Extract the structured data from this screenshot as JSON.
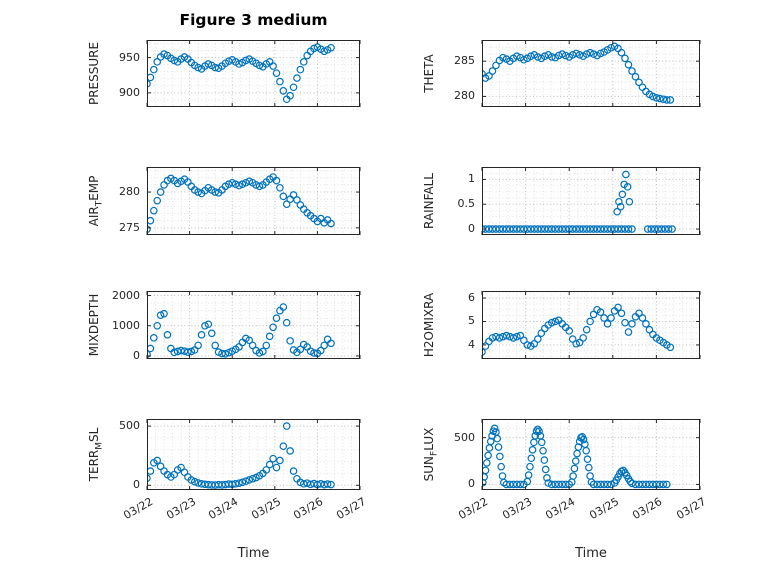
{
  "figure": {
    "title": "Figure 3 medium",
    "xlabel": "Time"
  },
  "style": {
    "marker_color": "#0072BD",
    "axis_color": "#262626",
    "grid_color": "#bdbdbd",
    "minor_grid_color": "#e0e0e0",
    "background": "#ffffff"
  },
  "x_axis": {
    "lim": [
      0,
      5
    ],
    "ticks": [
      0,
      1,
      2,
      3,
      4,
      5
    ],
    "tick_labels": [
      "03/22",
      "03/23",
      "03/24",
      "03/25",
      "03/26",
      "03/27"
    ],
    "minor_step": 0.2
  },
  "x_shared": [
    0,
    0.08,
    0.16,
    0.24,
    0.32,
    0.4,
    0.48,
    0.56,
    0.64,
    0.72,
    0.8,
    0.88,
    0.96,
    1.04,
    1.12,
    1.2,
    1.28,
    1.36,
    1.44,
    1.52,
    1.6,
    1.68,
    1.76,
    1.84,
    1.92,
    2,
    2.08,
    2.16,
    2.24,
    2.32,
    2.4,
    2.48,
    2.56,
    2.64,
    2.72,
    2.8,
    2.88,
    2.96,
    3.04,
    3.12,
    3.2,
    3.28,
    3.36,
    3.44,
    3.52,
    3.6,
    3.68,
    3.76,
    3.84,
    3.92,
    4,
    4.08,
    4.16,
    4.24,
    4.32
  ],
  "chart_data": [
    {
      "type": "scatter",
      "name": "PRESSURE",
      "ylabel_parts": {
        "pre": "PRESSURE",
        "sub": "",
        "post": ""
      },
      "ylim": [
        880,
        975
      ],
      "yticks": [
        900,
        950
      ],
      "ytick_labels": [
        "900",
        "950"
      ],
      "yminor_step": 10,
      "x": "shared",
      "y": [
        913,
        922,
        933,
        944,
        951,
        955,
        953,
        949,
        946,
        944,
        948,
        951,
        948,
        943,
        939,
        936,
        934,
        938,
        941,
        939,
        936,
        935,
        938,
        942,
        945,
        947,
        944,
        941,
        943,
        946,
        948,
        945,
        942,
        939,
        937,
        941,
        944,
        938,
        928,
        916,
        903,
        891,
        896,
        908,
        921,
        933,
        944,
        953,
        959,
        963,
        965,
        962,
        959,
        961,
        964
      ]
    },
    {
      "type": "scatter",
      "name": "THETA",
      "ylabel_parts": {
        "pre": "THETA",
        "sub": "",
        "post": ""
      },
      "ylim": [
        278.5,
        288
      ],
      "yticks": [
        280,
        285
      ],
      "ytick_labels": [
        "280",
        "285"
      ],
      "yminor_step": 1,
      "x": "shared",
      "y": [
        283.2,
        282.6,
        282.9,
        283.6,
        284.4,
        285.1,
        285.5,
        285.3,
        285.0,
        285.4,
        285.7,
        285.5,
        285.2,
        285.4,
        285.7,
        285.9,
        285.6,
        285.4,
        285.7,
        285.9,
        285.6,
        285.5,
        285.8,
        286.0,
        285.8,
        285.6,
        285.9,
        286.1,
        285.9,
        285.7,
        286.0,
        286.2,
        286.0,
        285.8,
        286.1,
        286.3,
        286.6,
        286.9,
        287.1,
        286.8,
        286.2,
        285.4,
        284.5,
        283.6,
        282.8,
        282.0,
        281.3,
        280.7,
        280.3,
        280.0,
        279.8,
        279.7,
        279.6,
        279.5,
        279.5
      ]
    },
    {
      "type": "scatter",
      "name": "AIR_TEMP",
      "ylabel_parts": {
        "pre": "AIR",
        "sub": "T",
        "post": "EMP"
      },
      "ylim": [
        274,
        283.5
      ],
      "yticks": [
        275,
        280
      ],
      "ytick_labels": [
        "275",
        "280"
      ],
      "yminor_step": 1,
      "x": "shared",
      "y": [
        274.8,
        276.0,
        277.4,
        278.8,
        280.0,
        281.0,
        281.6,
        281.9,
        281.6,
        281.2,
        281.5,
        281.8,
        281.4,
        280.8,
        280.3,
        280.0,
        279.8,
        280.2,
        280.6,
        280.3,
        280.0,
        279.9,
        280.3,
        280.8,
        281.1,
        281.3,
        281.1,
        280.9,
        281.1,
        281.3,
        281.5,
        281.3,
        281.0,
        280.8,
        281.0,
        281.4,
        281.8,
        282.1,
        281.6,
        280.6,
        279.4,
        278.3,
        279.0,
        279.6,
        278.9,
        278.2,
        277.6,
        277.1,
        276.7,
        276.3,
        275.9,
        276.3,
        275.7,
        276.1,
        275.6
      ]
    },
    {
      "type": "scatter",
      "name": "RAINFALL",
      "ylabel_parts": {
        "pre": "RAINFALL",
        "sub": "",
        "post": ""
      },
      "ylim": [
        -0.12,
        1.25
      ],
      "yticks": [
        0,
        0.5,
        1
      ],
      "ytick_labels": [
        "0",
        "0.5",
        "1"
      ],
      "yminor_step": 0.125,
      "x": [
        0,
        0.08,
        0.16,
        0.24,
        0.32,
        0.4,
        0.48,
        0.56,
        0.64,
        0.72,
        0.8,
        0.88,
        0.96,
        1.04,
        1.12,
        1.2,
        1.28,
        1.36,
        1.44,
        1.52,
        1.6,
        1.68,
        1.76,
        1.84,
        1.92,
        2,
        2.08,
        2.16,
        2.24,
        2.32,
        2.4,
        2.48,
        2.56,
        2.64,
        2.72,
        2.8,
        2.88,
        2.96,
        3.04,
        3.12,
        3.2,
        3.28,
        3.36,
        3.44,
        3.1,
        3.14,
        3.18,
        3.22,
        3.26,
        3.3,
        3.34,
        3.38,
        3.8,
        3.88,
        3.96,
        4.04,
        4.12,
        4.2,
        4.28,
        4.36
      ],
      "y": [
        0,
        0,
        0,
        0,
        0,
        0,
        0,
        0,
        0,
        0,
        0,
        0,
        0,
        0,
        0,
        0,
        0,
        0,
        0,
        0,
        0,
        0,
        0,
        0,
        0,
        0,
        0,
        0,
        0,
        0,
        0,
        0,
        0,
        0,
        0,
        0,
        0,
        0,
        0,
        0,
        0,
        0,
        0,
        0,
        0.35,
        0.55,
        0.45,
        0.7,
        0.9,
        1.1,
        0.85,
        0.55,
        0,
        0,
        0,
        0,
        0,
        0,
        0,
        0
      ]
    },
    {
      "type": "scatter",
      "name": "MIXDEPTH",
      "ylabel_parts": {
        "pre": "MIXDEPTH",
        "sub": "",
        "post": ""
      },
      "ylim": [
        -100,
        2150
      ],
      "yticks": [
        0,
        1000,
        2000
      ],
      "ytick_labels": [
        "0",
        "1000",
        "2000"
      ],
      "yminor_step": 250,
      "x": "shared",
      "y": [
        60,
        250,
        600,
        1000,
        1350,
        1400,
        700,
        250,
        120,
        150,
        180,
        160,
        130,
        150,
        200,
        350,
        700,
        1000,
        1050,
        750,
        350,
        130,
        80,
        70,
        110,
        160,
        220,
        300,
        450,
        580,
        520,
        350,
        180,
        100,
        150,
        350,
        650,
        950,
        1250,
        1500,
        1620,
        1100,
        500,
        200,
        120,
        220,
        380,
        300,
        160,
        100,
        90,
        180,
        350,
        550,
        420
      ]
    },
    {
      "type": "scatter",
      "name": "H2OMIXRA",
      "ylabel_parts": {
        "pre": "H2OMIXRA",
        "sub": "",
        "post": ""
      },
      "ylim": [
        3.4,
        6.3
      ],
      "yticks": [
        4,
        5,
        6
      ],
      "ytick_labels": [
        "4",
        "5",
        "6"
      ],
      "yminor_step": 0.25,
      "x": "shared",
      "y": [
        3.7,
        3.95,
        4.15,
        4.3,
        4.35,
        4.3,
        4.35,
        4.4,
        4.35,
        4.3,
        4.35,
        4.4,
        4.2,
        4.0,
        3.95,
        4.05,
        4.25,
        4.5,
        4.7,
        4.85,
        4.95,
        5.0,
        5.05,
        4.9,
        4.75,
        4.6,
        4.25,
        4.05,
        4.1,
        4.3,
        4.65,
        5.0,
        5.3,
        5.5,
        5.4,
        5.15,
        4.9,
        5.15,
        5.45,
        5.6,
        5.35,
        4.95,
        4.55,
        4.9,
        5.2,
        5.35,
        5.15,
        4.9,
        4.65,
        4.45,
        4.3,
        4.2,
        4.1,
        4.0,
        3.9
      ]
    },
    {
      "type": "scatter",
      "name": "TERR_MSL",
      "ylabel_parts": {
        "pre": "TERR",
        "sub": "M",
        "post": "SL"
      },
      "ylim": [
        -40,
        560
      ],
      "yticks": [
        0,
        500
      ],
      "ytick_labels": [
        "0",
        "500"
      ],
      "yminor_step": 100,
      "x": "shared",
      "y": [
        60,
        120,
        190,
        210,
        160,
        120,
        90,
        70,
        90,
        130,
        150,
        110,
        70,
        45,
        30,
        20,
        12,
        8,
        5,
        3,
        2,
        5,
        3,
        6,
        10,
        8,
        12,
        18,
        25,
        35,
        45,
        55,
        65,
        80,
        100,
        130,
        175,
        225,
        150,
        210,
        330,
        500,
        290,
        120,
        55,
        25,
        12,
        18,
        8,
        14,
        6,
        12,
        5,
        10,
        6
      ]
    },
    {
      "type": "scatter",
      "name": "SUN_FLUX",
      "ylabel_parts": {
        "pre": "SUN",
        "sub": "F",
        "post": "LUX"
      },
      "ylim": [
        -60,
        700
      ],
      "yticks": [
        0,
        500
      ],
      "ytick_labels": [
        "0",
        "500"
      ],
      "yminor_step": 100,
      "x": [
        0.02,
        0.05,
        0.08,
        0.11,
        0.14,
        0.17,
        0.2,
        0.23,
        0.26,
        0.29,
        0.32,
        0.35,
        0.38,
        0.41,
        0.44,
        0.47,
        0.5,
        0.56,
        0.64,
        0.72,
        0.8,
        0.88,
        0.96,
        1.04,
        1.07,
        1.1,
        1.13,
        1.16,
        1.19,
        1.22,
        1.25,
        1.28,
        1.31,
        1.34,
        1.37,
        1.4,
        1.43,
        1.46,
        1.49,
        1.52,
        1.6,
        1.68,
        1.76,
        1.84,
        1.92,
        2,
        2.06,
        2.09,
        2.12,
        2.15,
        2.18,
        2.21,
        2.24,
        2.27,
        2.3,
        2.33,
        2.36,
        2.39,
        2.42,
        2.45,
        2.48,
        2.51,
        2.56,
        2.64,
        2.72,
        2.8,
        2.88,
        2.96,
        3.04,
        3.08,
        3.12,
        3.16,
        3.2,
        3.24,
        3.28,
        3.32,
        3.36,
        3.4,
        3.44,
        3.52,
        3.6,
        3.68,
        3.76,
        3.84,
        3.92,
        4,
        4.08,
        4.16,
        4.24
      ],
      "y": [
        20,
        80,
        150,
        230,
        310,
        390,
        460,
        520,
        570,
        600,
        560,
        490,
        400,
        300,
        190,
        90,
        20,
        0,
        0,
        0,
        0,
        0,
        0,
        30,
        100,
        190,
        280,
        370,
        450,
        520,
        570,
        590,
        570,
        520,
        450,
        360,
        260,
        160,
        70,
        15,
        0,
        0,
        0,
        0,
        0,
        0,
        25,
        90,
        170,
        250,
        330,
        400,
        460,
        500,
        510,
        480,
        430,
        360,
        270,
        180,
        90,
        25,
        0,
        0,
        0,
        0,
        0,
        0,
        15,
        45,
        80,
        115,
        140,
        150,
        125,
        95,
        60,
        30,
        10,
        0,
        0,
        0,
        0,
        0,
        0,
        0,
        0,
        0,
        0
      ]
    }
  ]
}
